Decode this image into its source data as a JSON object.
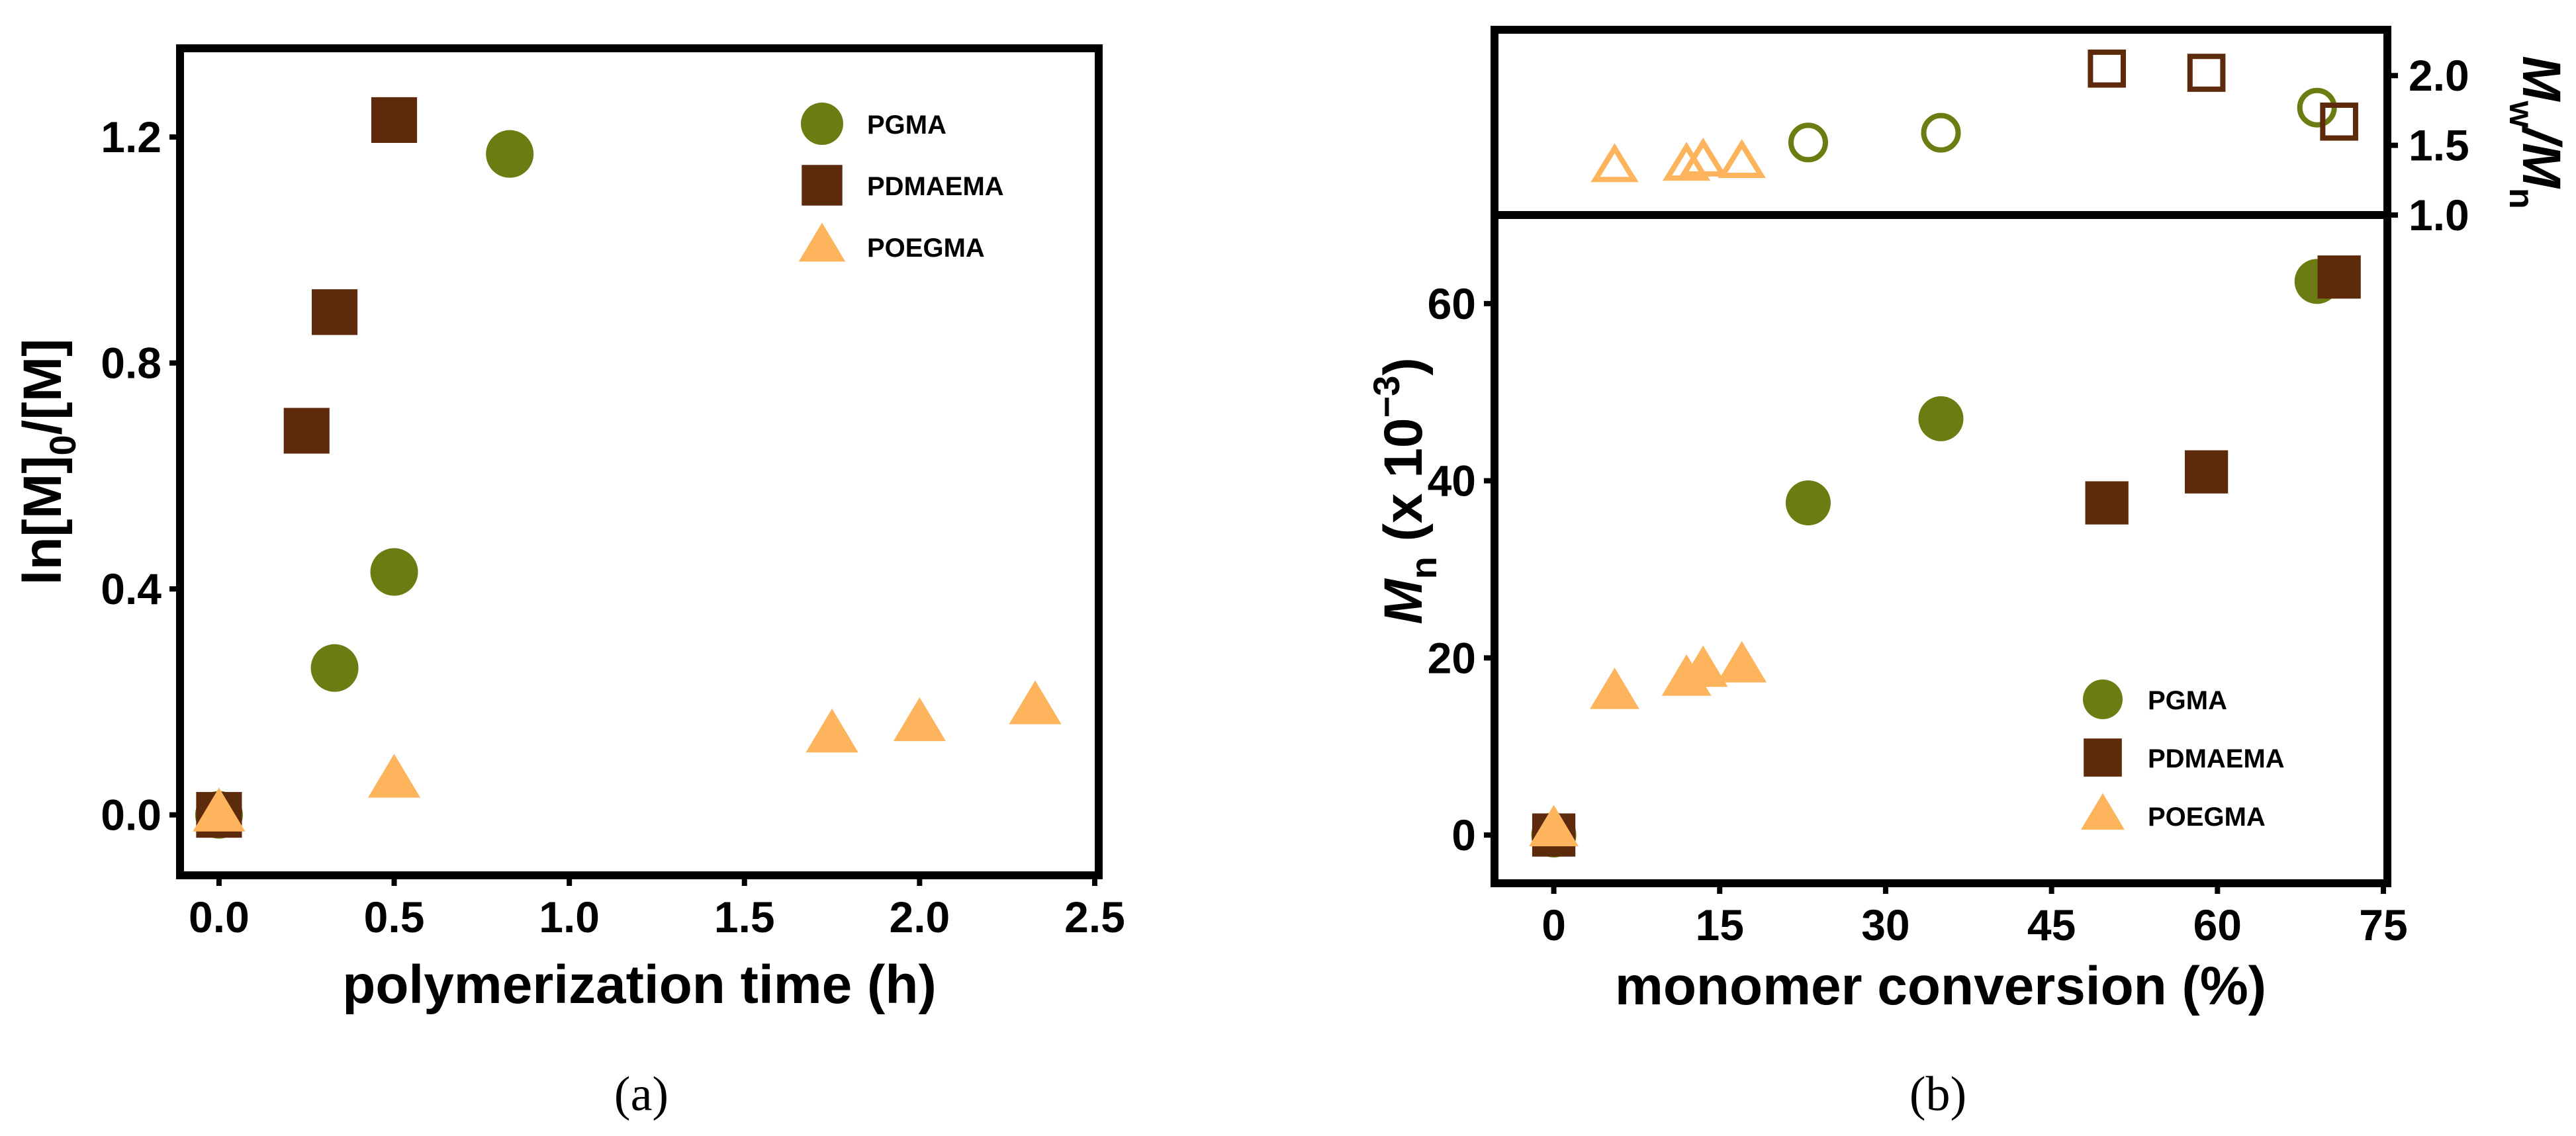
{
  "colors": {
    "pgma": "#6b7d12",
    "pdmaema": "#5e2a0c",
    "poegma": "#fdb45c",
    "axis": "#000000"
  },
  "chart_data": [
    {
      "id": "a",
      "type": "scatter",
      "caption": "(a)",
      "xlabel": "polymerization time (h)",
      "ylabel": {
        "main": "ln[M]",
        "sub": "0",
        "rest": "/[M]"
      },
      "xlim": [
        -0.1,
        2.5
      ],
      "ylim": [
        -0.1,
        1.35
      ],
      "xticks": [
        {
          "v": 0.0,
          "label": "0.0"
        },
        {
          "v": 0.5,
          "label": "0.5"
        },
        {
          "v": 1.0,
          "label": "1.0"
        },
        {
          "v": 1.5,
          "label": "1.5"
        },
        {
          "v": 2.0,
          "label": "2.0"
        },
        {
          "v": 2.5,
          "label": "2.5"
        }
      ],
      "yticks": [
        {
          "v": 0.0,
          "label": "0.0"
        },
        {
          "v": 0.4,
          "label": "0.4"
        },
        {
          "v": 0.8,
          "label": "0.8"
        },
        {
          "v": 1.2,
          "label": "1.2"
        }
      ],
      "legend": {
        "placement": "top-right",
        "entries": [
          {
            "name": "PGMA",
            "marker": "circle",
            "color": "pgma"
          },
          {
            "name": "PDMAEMA",
            "marker": "square",
            "color": "pdmaema"
          },
          {
            "name": "POEGMA",
            "marker": "triangle",
            "color": "poegma"
          }
        ]
      },
      "series": [
        {
          "name": "PGMA",
          "marker": "circle",
          "color": "pgma",
          "filled": true,
          "points": [
            [
              0,
              0
            ],
            [
              0.33,
              0.26
            ],
            [
              0.5,
              0.43
            ],
            [
              0.83,
              1.17
            ]
          ]
        },
        {
          "name": "PDMAEMA",
          "marker": "square",
          "color": "pdmaema",
          "filled": true,
          "points": [
            [
              0,
              0
            ],
            [
              0.25,
              0.68
            ],
            [
              0.33,
              0.89
            ],
            [
              0.5,
              1.23
            ]
          ]
        },
        {
          "name": "POEGMA",
          "marker": "triangle",
          "color": "poegma",
          "filled": true,
          "points": [
            [
              0,
              0
            ],
            [
              0.5,
              0.06
            ],
            [
              1.75,
              0.14
            ],
            [
              2.0,
              0.16
            ],
            [
              2.33,
              0.19
            ]
          ]
        }
      ]
    },
    {
      "id": "b-upper",
      "type": "scatter",
      "ylabel": {
        "main": "M",
        "sub1": "w",
        "mid": "/M",
        "sub2": "n"
      },
      "xlim": [
        -5,
        75
      ],
      "ylim": [
        1.0,
        2.3
      ],
      "yticks": [
        {
          "v": 1.0,
          "label": "1.0"
        },
        {
          "v": 1.5,
          "label": "1.5"
        },
        {
          "v": 2.0,
          "label": "2.0"
        }
      ],
      "series": [
        {
          "name": "PGMA",
          "marker": "circle",
          "color": "pgma",
          "filled": false,
          "points": [
            [
              23,
              1.52
            ],
            [
              35,
              1.59
            ],
            [
              69,
              1.77
            ]
          ]
        },
        {
          "name": "PDMAEMA",
          "marker": "square",
          "color": "pdmaema",
          "filled": false,
          "points": [
            [
              50,
              2.05
            ],
            [
              59,
              2.02
            ],
            [
              71,
              1.67
            ]
          ]
        },
        {
          "name": "POEGMA",
          "marker": "triangle",
          "color": "poegma",
          "filled": false,
          "points": [
            [
              5.5,
              1.34
            ],
            [
              12,
              1.35
            ],
            [
              13.5,
              1.38
            ],
            [
              17,
              1.37
            ]
          ]
        }
      ]
    },
    {
      "id": "b-lower",
      "type": "scatter",
      "caption": "(b)",
      "xlabel": "monomer conversion (%)",
      "ylabel": {
        "main": "M",
        "sub": "n",
        "rest": " (x 10",
        "sup": "−3",
        "end": ")"
      },
      "xlim": [
        -5,
        75
      ],
      "ylim": [
        -5,
        70
      ],
      "xticks": [
        {
          "v": 0,
          "label": "0"
        },
        {
          "v": 15,
          "label": "15"
        },
        {
          "v": 30,
          "label": "30"
        },
        {
          "v": 45,
          "label": "45"
        },
        {
          "v": 60,
          "label": "60"
        },
        {
          "v": 75,
          "label": "75"
        }
      ],
      "yticks": [
        {
          "v": 0,
          "label": "0"
        },
        {
          "v": 20,
          "label": "20"
        },
        {
          "v": 40,
          "label": "40"
        },
        {
          "v": 60,
          "label": "60"
        }
      ],
      "legend": {
        "placement": "bottom-right",
        "entries": [
          {
            "name": "PGMA",
            "marker": "circle",
            "color": "pgma"
          },
          {
            "name": "PDMAEMA",
            "marker": "square",
            "color": "pdmaema"
          },
          {
            "name": "POEGMA",
            "marker": "triangle",
            "color": "poegma"
          }
        ]
      },
      "series": [
        {
          "name": "PGMA",
          "marker": "circle",
          "color": "pgma",
          "filled": true,
          "points": [
            [
              0,
              0
            ],
            [
              23,
              37.5
            ],
            [
              35,
              47
            ],
            [
              69,
              62.5
            ]
          ]
        },
        {
          "name": "PDMAEMA",
          "marker": "square",
          "color": "pdmaema",
          "filled": true,
          "points": [
            [
              0,
              0
            ],
            [
              50,
              37.5
            ],
            [
              59,
              41
            ],
            [
              71,
              63
            ]
          ]
        },
        {
          "name": "POEGMA",
          "marker": "triangle",
          "color": "poegma",
          "filled": true,
          "points": [
            [
              0,
              0.5
            ],
            [
              5.5,
              16
            ],
            [
              12,
              17.5
            ],
            [
              13.5,
              18.5
            ],
            [
              17,
              19
            ]
          ]
        }
      ]
    }
  ]
}
